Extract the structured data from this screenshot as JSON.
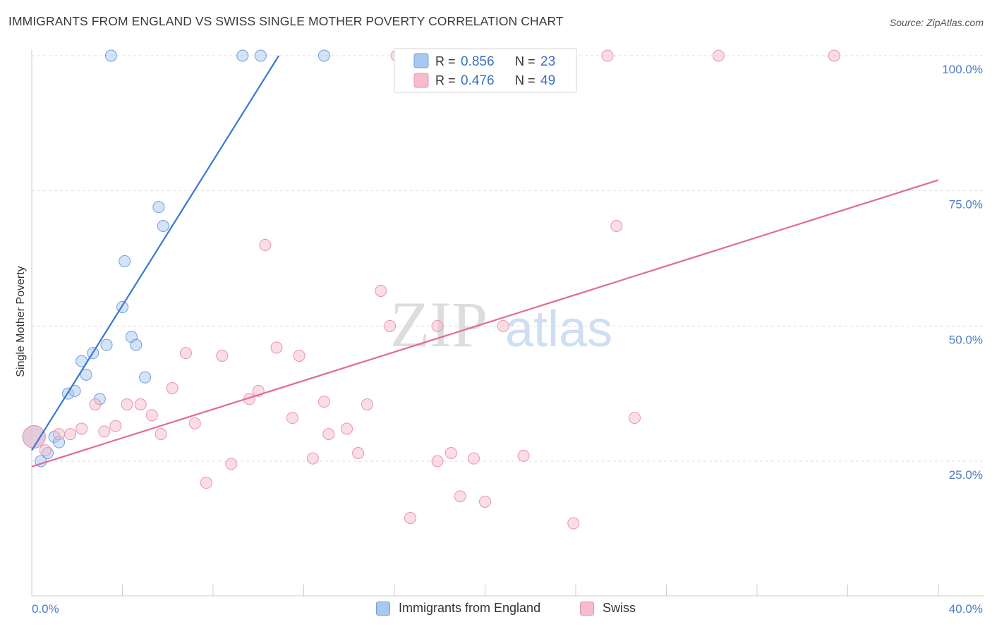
{
  "title": "IMMIGRANTS FROM ENGLAND VS SWISS SINGLE MOTHER POVERTY CORRELATION CHART",
  "source": "Source: ZipAtlas.com",
  "watermark": {
    "zip": "ZIP",
    "atlas": "atlas"
  },
  "legend": {
    "rows": [
      {
        "r_label": "R = ",
        "r_value": "0.856",
        "n_label": "N = ",
        "n_value": "23",
        "color": "#a9c8f0",
        "stroke": "#6f9fdc"
      },
      {
        "r_label": "R = ",
        "r_value": "0.476",
        "n_label": "N = ",
        "n_value": "49",
        "color": "#f7bccb",
        "stroke": "#e994ad"
      }
    ]
  },
  "bottom_legend": [
    {
      "label": "Immigrants from England",
      "color": "#a9c8f0",
      "stroke": "#6f9fdc"
    },
    {
      "label": "Swiss",
      "color": "#f7bccb",
      "stroke": "#e994ad"
    }
  ],
  "chart_data": {
    "type": "scatter",
    "title": "IMMIGRANTS FROM ENGLAND VS SWISS SINGLE MOTHER POVERTY CORRELATION CHART",
    "xlabel": "",
    "ylabel": "Single Mother Poverty",
    "xlim": [
      0,
      40
    ],
    "ylim": [
      0,
      105
    ],
    "x_tick_labels": [
      "0.0%",
      "40.0%"
    ],
    "y_ticks": [
      25,
      50,
      75,
      100
    ],
    "y_tick_labels": [
      "25.0%",
      "50.0%",
      "75.0%",
      "100.0%"
    ],
    "grid": true,
    "legend_position": "top-center",
    "series": [
      {
        "name": "Immigrants from England",
        "color": "#a9c8f0",
        "stroke": "#6f9fdc",
        "line_color": "#3a78d0",
        "trend": [
          [
            0.0,
            27.0
          ],
          [
            10.9,
            100.0
          ]
        ],
        "points": [
          [
            0.1,
            29.5
          ],
          [
            0.4,
            25.0
          ],
          [
            0.7,
            26.5
          ],
          [
            1.0,
            29.5
          ],
          [
            1.2,
            28.5
          ],
          [
            1.6,
            37.5
          ],
          [
            1.9,
            38.0
          ],
          [
            2.2,
            43.5
          ],
          [
            2.4,
            41.0
          ],
          [
            2.7,
            45.0
          ],
          [
            3.0,
            36.5
          ],
          [
            3.3,
            46.5
          ],
          [
            3.5,
            100.0
          ],
          [
            4.0,
            53.5
          ],
          [
            4.1,
            62.0
          ],
          [
            4.4,
            48.0
          ],
          [
            4.6,
            46.5
          ],
          [
            5.0,
            40.5
          ],
          [
            5.6,
            72.0
          ],
          [
            5.8,
            68.5
          ],
          [
            9.3,
            100.0
          ],
          [
            10.1,
            100.0
          ],
          [
            12.9,
            100.0
          ]
        ]
      },
      {
        "name": "Swiss",
        "color": "#f7bccb",
        "stroke": "#e994ad",
        "line_color": "#e26a94",
        "trend": [
          [
            0.0,
            24.0
          ],
          [
            40.0,
            77.0
          ]
        ],
        "points": [
          [
            0.1,
            29.5
          ],
          [
            0.6,
            27.0
          ],
          [
            1.2,
            30.0
          ],
          [
            1.7,
            30.0
          ],
          [
            2.2,
            31.0
          ],
          [
            2.8,
            35.5
          ],
          [
            3.2,
            30.5
          ],
          [
            3.7,
            31.5
          ],
          [
            4.2,
            35.5
          ],
          [
            4.8,
            35.5
          ],
          [
            5.3,
            33.5
          ],
          [
            5.7,
            30.0
          ],
          [
            6.2,
            38.5
          ],
          [
            6.8,
            45.0
          ],
          [
            7.2,
            32.0
          ],
          [
            7.7,
            21.0
          ],
          [
            8.4,
            44.5
          ],
          [
            8.8,
            24.5
          ],
          [
            9.6,
            36.5
          ],
          [
            10.0,
            38.0
          ],
          [
            10.3,
            65.0
          ],
          [
            10.8,
            46.0
          ],
          [
            11.5,
            33.0
          ],
          [
            11.8,
            44.5
          ],
          [
            12.4,
            25.5
          ],
          [
            12.9,
            36.0
          ],
          [
            13.1,
            30.0
          ],
          [
            13.9,
            31.0
          ],
          [
            14.4,
            26.5
          ],
          [
            14.8,
            35.5
          ],
          [
            15.4,
            56.5
          ],
          [
            15.8,
            50.0
          ],
          [
            16.1,
            100.0
          ],
          [
            16.7,
            14.5
          ],
          [
            17.9,
            25.0
          ],
          [
            17.9,
            50.0
          ],
          [
            18.5,
            26.5
          ],
          [
            18.9,
            18.5
          ],
          [
            19.5,
            25.5
          ],
          [
            20.0,
            17.5
          ],
          [
            20.8,
            50.0
          ],
          [
            21.7,
            26.0
          ],
          [
            22.1,
            100.0
          ],
          [
            23.9,
            13.5
          ],
          [
            25.4,
            100.0
          ],
          [
            25.8,
            68.5
          ],
          [
            26.6,
            33.0
          ],
          [
            30.3,
            100.0
          ],
          [
            35.4,
            100.0
          ]
        ]
      }
    ]
  }
}
